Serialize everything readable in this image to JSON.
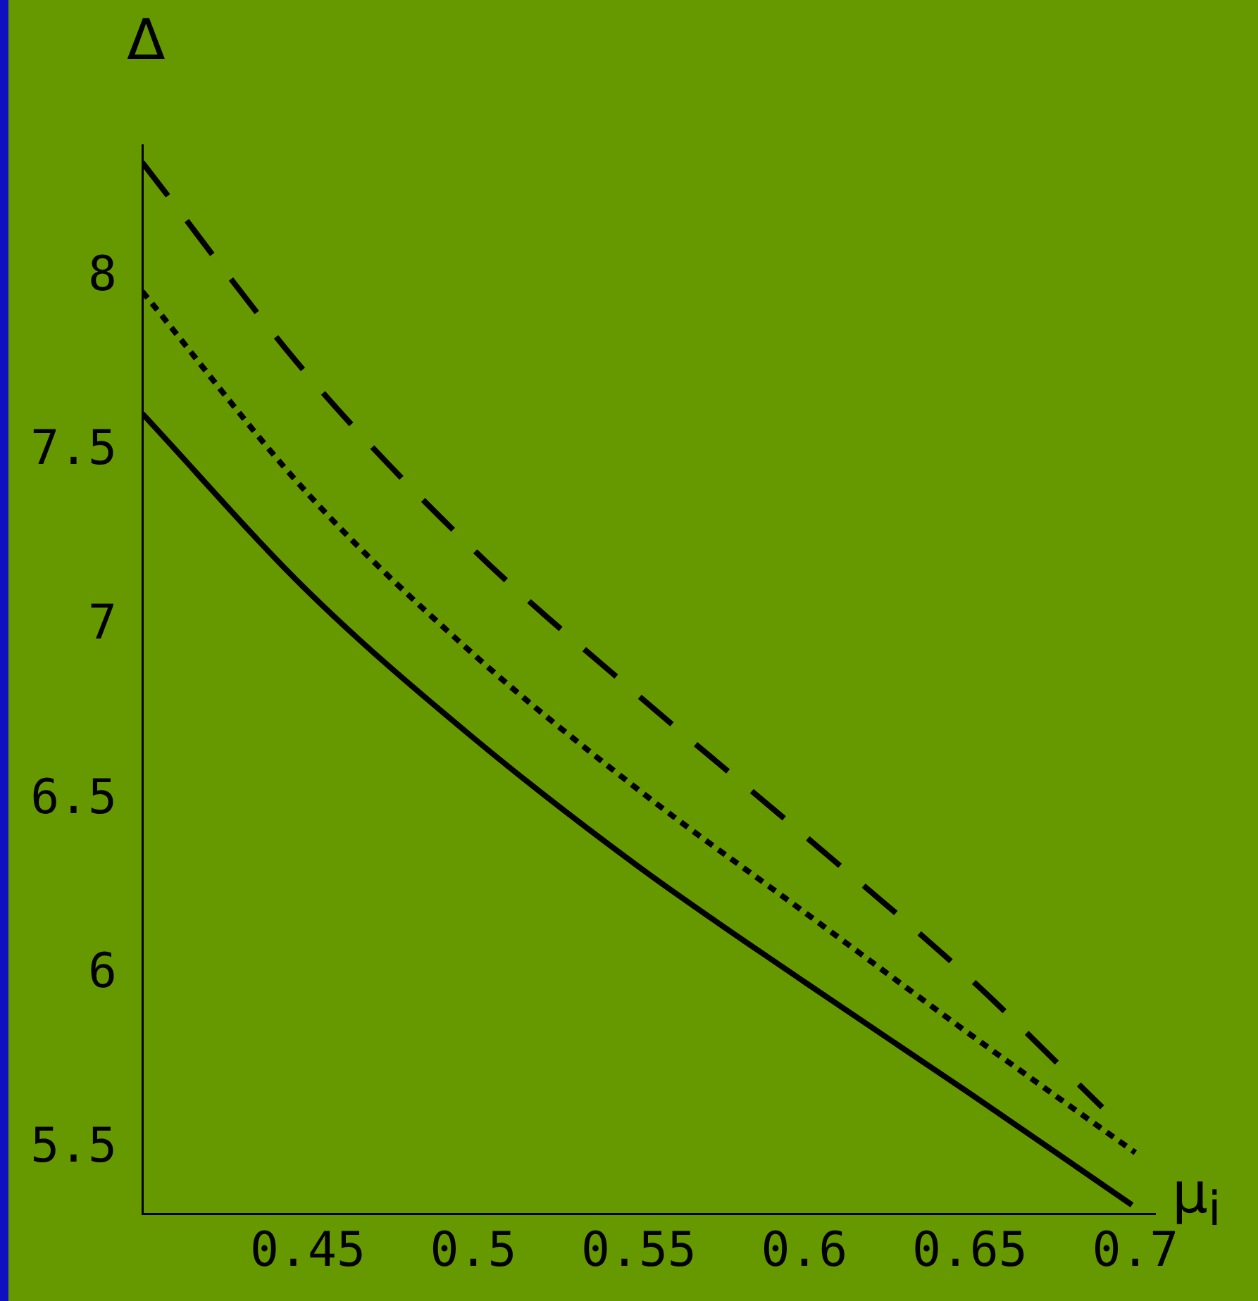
{
  "chart_data": {
    "type": "line",
    "xlabel": "μ$_{i}$",
    "ylabel": "Δ",
    "grid": false,
    "legend": false,
    "marker": "none",
    "xlim": [
      0.4,
      0.706
    ],
    "xticks": [
      0.45,
      0.5,
      0.55,
      0.6,
      0.65,
      0.7
    ],
    "ylim": [
      5.315,
      8.38
    ],
    "yticks": [
      5.5,
      6,
      6.5,
      7,
      7.5,
      8
    ],
    "series": [
      {
        "color": "#000000",
        "line_style": "solid",
        "x": [
          0.4,
          0.45,
          0.5,
          0.55,
          0.6,
          0.65,
          0.699
        ],
        "values": [
          7.61,
          7.1,
          6.68,
          6.31,
          5.98,
          5.66,
          5.34
        ]
      },
      {
        "color": "#000000",
        "line_style": "dotted",
        "x": [
          0.4,
          0.45,
          0.5,
          0.55,
          0.6,
          0.65,
          0.7
        ],
        "values": [
          7.96,
          7.38,
          6.92,
          6.53,
          6.18,
          5.83,
          5.49
        ]
      },
      {
        "color": "#000000",
        "line_style": "dashed",
        "x": [
          0.4,
          0.45,
          0.5,
          0.55,
          0.6,
          0.65,
          0.69
        ],
        "values": [
          8.33,
          7.72,
          7.22,
          6.8,
          6.4,
          5.99,
          5.62
        ]
      }
    ]
  }
}
